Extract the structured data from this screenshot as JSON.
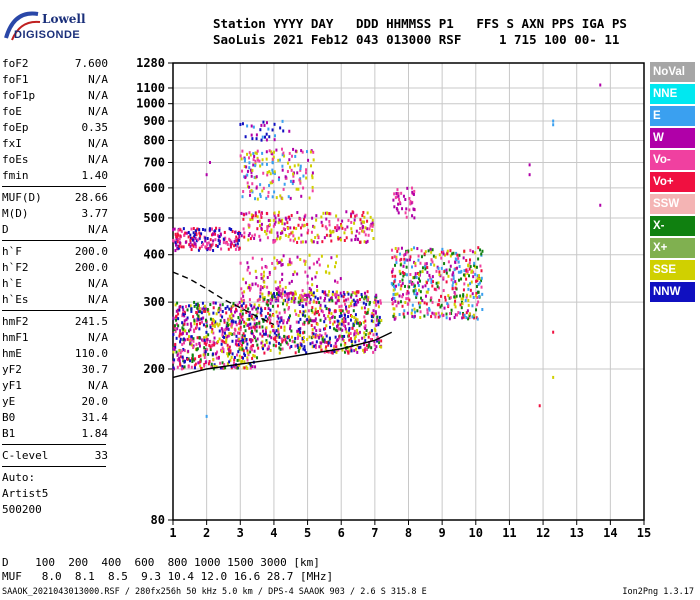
{
  "logo": {
    "line1": "Lowell",
    "line2": "DIGISONDE"
  },
  "header": {
    "line1": "Station YYYY DAY   DDD HHMMSS P1   FFS S AXN PPS IGA PS",
    "line2": "SaoLuis 2021 Feb12 043 013000 RSF     1 715 100 00- 11"
  },
  "params": {
    "group1": [
      {
        "label": "foF2",
        "value": "7.600"
      },
      {
        "label": "foF1",
        "value": "N/A"
      },
      {
        "label": "foF1p",
        "value": "N/A"
      },
      {
        "label": "foE",
        "value": "N/A"
      },
      {
        "label": "foEp",
        "value": "0.35"
      },
      {
        "label": "fxI",
        "value": "N/A"
      },
      {
        "label": "foEs",
        "value": "N/A"
      },
      {
        "label": "fmin",
        "value": "1.40"
      }
    ],
    "group2": [
      {
        "label": "MUF(D)",
        "value": "28.66"
      },
      {
        "label": "M(D)",
        "value": "3.77"
      },
      {
        "label": "D",
        "value": "N/A"
      }
    ],
    "group3": [
      {
        "label": "h`F",
        "value": "200.0"
      },
      {
        "label": "h`F2",
        "value": "200.0"
      },
      {
        "label": "h`E",
        "value": "N/A"
      },
      {
        "label": "h`Es",
        "value": "N/A"
      }
    ],
    "group4": [
      {
        "label": "hmF2",
        "value": "241.5"
      },
      {
        "label": "hmF1",
        "value": "N/A"
      },
      {
        "label": "hmE",
        "value": "110.0"
      },
      {
        "label": "yF2",
        "value": "30.7"
      },
      {
        "label": "yF1",
        "value": "N/A"
      },
      {
        "label": "yE",
        "value": "20.0"
      },
      {
        "label": "B0",
        "value": "31.4"
      },
      {
        "label": "B1",
        "value": "1.84"
      }
    ],
    "clevel": {
      "label": "C-level",
      "value": "33"
    },
    "auto": [
      "Auto:",
      "Artist5",
      "500200"
    ]
  },
  "legend": [
    {
      "label": "NoVal",
      "color": "#a6a6a6"
    },
    {
      "label": "NNE",
      "color": "#00e8f0"
    },
    {
      "label": "E",
      "color": "#3aa0f0"
    },
    {
      "label": "W",
      "color": "#b000a8"
    },
    {
      "label": "Vo-",
      "color": "#f040a0"
    },
    {
      "label": "Vo+",
      "color": "#f01040"
    },
    {
      "label": "SSW",
      "color": "#f4b4b4"
    },
    {
      "label": "X-",
      "color": "#108010"
    },
    {
      "label": "X+",
      "color": "#80b050"
    },
    {
      "label": "SSE",
      "color": "#d0d000"
    },
    {
      "label": "NNW",
      "color": "#1010c0"
    }
  ],
  "footer": {
    "line1": "D    100  200  400  600  800 1000 1500 3000 [km]",
    "line2": "MUF   8.0  8.1  8.5  9.3 10.4 12.0 16.6 28.7 [MHz]",
    "bottom": "SAAOK_2021043013000.RSF / 280fx256h 50 kHz 5.0 km / DPS-4 SAAOK 903 / 2.6 S 315.8 E",
    "version": "Ion2Png 1.3.17"
  },
  "chart_data": {
    "type": "scatter",
    "xlim": [
      1,
      15
    ],
    "ylim": [
      80,
      1280
    ],
    "yscale": "log",
    "xticks": [
      1,
      2,
      3,
      4,
      5,
      6,
      7,
      8,
      9,
      10,
      11,
      12,
      13,
      14,
      15
    ],
    "yticks": [
      80,
      200,
      300,
      400,
      500,
      600,
      700,
      800,
      900,
      1000,
      1100,
      1280
    ],
    "grid": true,
    "clusters": [
      {
        "x": [
          1.0,
          3.5
        ],
        "y": [
          200,
          300
        ],
        "colors": [
          "#f01040",
          "#1010c0",
          "#b000a8",
          "#d0d000",
          "#108010",
          "#f040a0"
        ],
        "density": 600
      },
      {
        "x": [
          3.5,
          7.2
        ],
        "y": [
          220,
          320
        ],
        "colors": [
          "#d0d000",
          "#f01040",
          "#108010",
          "#b000a8",
          "#f040a0",
          "#1010c0"
        ],
        "density": 700
      },
      {
        "x": [
          7.5,
          10.2
        ],
        "y": [
          270,
          420
        ],
        "colors": [
          "#d0d000",
          "#f01040",
          "#b000a8",
          "#f040a0",
          "#108010",
          "#3aa0f0"
        ],
        "density": 450
      },
      {
        "x": [
          1.0,
          3.0
        ],
        "y": [
          410,
          470
        ],
        "colors": [
          "#f01040",
          "#f040a0",
          "#b000a8",
          "#1010c0"
        ],
        "density": 180
      },
      {
        "x": [
          3.0,
          7.0
        ],
        "y": [
          430,
          520
        ],
        "colors": [
          "#b000a8",
          "#f040a0",
          "#f01040",
          "#d0d000"
        ],
        "density": 250
      },
      {
        "x": [
          3.0,
          6.0
        ],
        "y": [
          300,
          400
        ],
        "colors": [
          "#b000a8",
          "#f040a0",
          "#d0d000"
        ],
        "density": 150
      },
      {
        "x": [
          3.0,
          5.2
        ],
        "y": [
          560,
          760
        ],
        "colors": [
          "#b000a8",
          "#d0d000",
          "#f040a0",
          "#3aa0f0"
        ],
        "density": 170
      },
      {
        "x": [
          3.0,
          4.5
        ],
        "y": [
          800,
          900
        ],
        "colors": [
          "#3aa0f0",
          "#b000a8",
          "#1010c0"
        ],
        "density": 30
      },
      {
        "x": [
          7.5,
          8.2
        ],
        "y": [
          500,
          600
        ],
        "colors": [
          "#b000a8",
          "#f040a0"
        ],
        "density": 40
      }
    ],
    "traces": [
      {
        "name": "",
        "style": "solid",
        "x": [
          1.0,
          2.0,
          3.0,
          4.0,
          5.0,
          6.0,
          7.0,
          7.5
        ],
        "y": [
          190,
          200,
          206,
          212,
          219,
          226,
          238,
          250
        ]
      },
      {
        "name": "",
        "style": "dashed",
        "x": [
          1.0,
          1.5,
          2.0,
          2.5,
          3.0,
          3.5,
          4.0
        ],
        "y": [
          360,
          345,
          325,
          305,
          290,
          275,
          262
        ]
      }
    ],
    "isolated_points": [
      {
        "x": 2.1,
        "y": 700,
        "color": "#b000a8"
      },
      {
        "x": 2.0,
        "y": 650,
        "color": "#b000a8"
      },
      {
        "x": 11.6,
        "y": 690,
        "color": "#b000a8"
      },
      {
        "x": 11.6,
        "y": 650,
        "color": "#b000a8"
      },
      {
        "x": 12.3,
        "y": 900,
        "color": "#3aa0f0"
      },
      {
        "x": 12.3,
        "y": 880,
        "color": "#3aa0f0"
      },
      {
        "x": 13.7,
        "y": 1120,
        "color": "#b000a8"
      },
      {
        "x": 13.7,
        "y": 540,
        "color": "#b000a8"
      },
      {
        "x": 12.3,
        "y": 250,
        "color": "#f01040"
      },
      {
        "x": 11.9,
        "y": 160,
        "color": "#f01040"
      },
      {
        "x": 12.3,
        "y": 190,
        "color": "#d0d000"
      },
      {
        "x": 2.0,
        "y": 150,
        "color": "#3aa0f0"
      }
    ]
  }
}
